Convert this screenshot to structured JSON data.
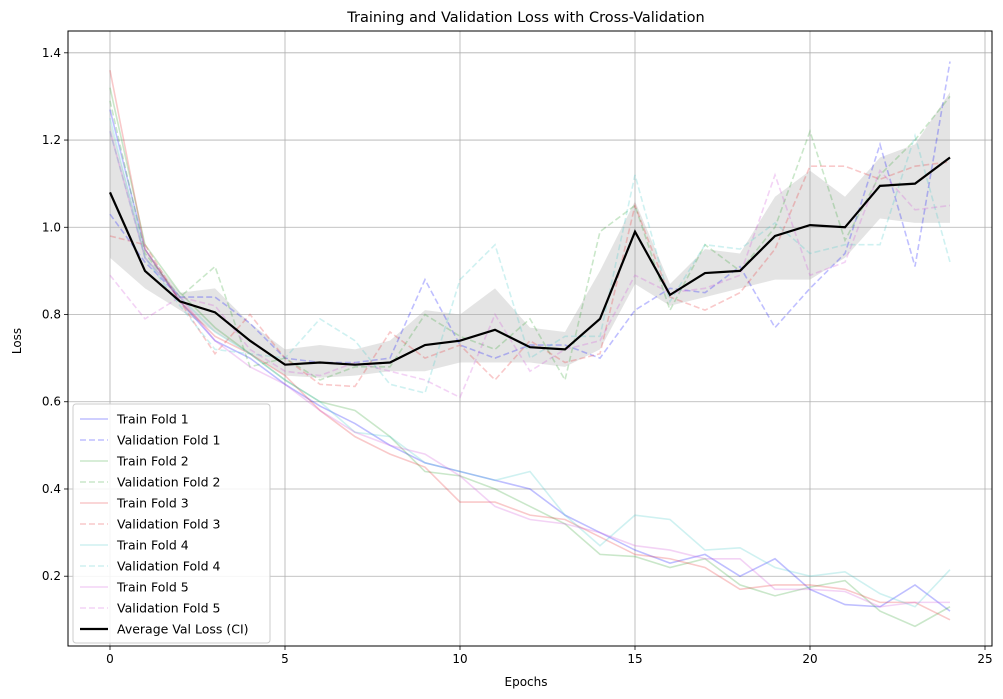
{
  "chart_data": {
    "type": "line",
    "title": "Training and Validation Loss with Cross-Validation",
    "xlabel": "Epochs",
    "ylabel": "Loss",
    "xlim": [
      -1.2,
      25.2
    ],
    "ylim": [
      0.04,
      1.45
    ],
    "xticks": [
      0,
      5,
      10,
      15,
      20,
      25
    ],
    "yticks": [
      0.2,
      0.4,
      0.6,
      0.8,
      1.0,
      1.2,
      1.4
    ],
    "grid": true,
    "legend_position": "lower-left",
    "x": [
      0,
      1,
      2,
      3,
      4,
      5,
      6,
      7,
      8,
      9,
      10,
      11,
      12,
      13,
      14,
      15,
      16,
      17,
      18,
      19,
      20,
      21,
      22,
      23,
      24
    ],
    "series": [
      {
        "name": "Train Fold 1",
        "color": "#0000ff",
        "dash": false,
        "values": [
          1.27,
          0.95,
          0.83,
          0.74,
          0.7,
          0.64,
          0.59,
          0.55,
          0.5,
          0.46,
          0.44,
          0.42,
          0.4,
          0.34,
          0.3,
          0.26,
          0.23,
          0.25,
          0.2,
          0.24,
          0.17,
          0.135,
          0.13,
          0.18,
          0.12
        ]
      },
      {
        "name": "Validation Fold 1",
        "color": "#0000ff",
        "dash": true,
        "values": [
          1.03,
          0.92,
          0.84,
          0.84,
          0.78,
          0.7,
          0.69,
          0.69,
          0.7,
          0.88,
          0.73,
          0.7,
          0.73,
          0.73,
          0.7,
          0.81,
          0.86,
          0.85,
          0.91,
          0.77,
          0.86,
          0.94,
          1.19,
          0.91,
          1.38
        ]
      },
      {
        "name": "Train Fold 2",
        "color": "#2ca02c",
        "dash": false,
        "values": [
          1.32,
          0.96,
          0.85,
          0.77,
          0.71,
          0.65,
          0.6,
          0.58,
          0.52,
          0.44,
          0.43,
          0.4,
          0.36,
          0.32,
          0.25,
          0.245,
          0.22,
          0.24,
          0.18,
          0.155,
          0.175,
          0.19,
          0.12,
          0.085,
          0.13
        ]
      },
      {
        "name": "Validation Fold 2",
        "color": "#2ca02c",
        "dash": true,
        "values": [
          1.29,
          0.94,
          0.84,
          0.91,
          0.68,
          0.7,
          0.65,
          0.68,
          0.68,
          0.8,
          0.75,
          0.72,
          0.79,
          0.65,
          0.99,
          1.05,
          0.81,
          0.96,
          0.9,
          1.0,
          1.22,
          0.97,
          1.12,
          1.2,
          1.3
        ]
      },
      {
        "name": "Train Fold 3",
        "color": "#e8262a",
        "dash": false,
        "values": [
          1.36,
          0.95,
          0.83,
          0.75,
          0.71,
          0.66,
          0.58,
          0.52,
          0.48,
          0.45,
          0.37,
          0.37,
          0.34,
          0.33,
          0.29,
          0.25,
          0.24,
          0.22,
          0.17,
          0.18,
          0.18,
          0.17,
          0.14,
          0.14,
          0.1
        ]
      },
      {
        "name": "Validation Fold 3",
        "color": "#e8262a",
        "dash": true,
        "values": [
          0.98,
          0.96,
          0.83,
          0.71,
          0.8,
          0.7,
          0.64,
          0.635,
          0.76,
          0.7,
          0.73,
          0.65,
          0.74,
          0.69,
          0.71,
          1.05,
          0.84,
          0.81,
          0.85,
          0.95,
          1.14,
          1.14,
          1.11,
          1.14,
          1.15
        ]
      },
      {
        "name": "Train Fold 4",
        "color": "#40c8c8",
        "dash": false,
        "values": [
          1.25,
          0.93,
          0.84,
          0.76,
          0.71,
          0.65,
          0.6,
          0.53,
          0.52,
          0.46,
          0.44,
          0.42,
          0.44,
          0.34,
          0.27,
          0.34,
          0.33,
          0.26,
          0.265,
          0.22,
          0.2,
          0.21,
          0.16,
          0.13,
          0.215
        ]
      },
      {
        "name": "Validation Fold 4",
        "color": "#40c8c8",
        "dash": true,
        "values": [
          1.22,
          0.93,
          0.82,
          0.72,
          0.71,
          0.7,
          0.79,
          0.74,
          0.64,
          0.62,
          0.88,
          0.96,
          0.7,
          0.75,
          0.75,
          1.12,
          0.83,
          0.96,
          0.95,
          1.01,
          0.94,
          0.96,
          0.96,
          1.21,
          0.92
        ]
      },
      {
        "name": "Train Fold 5",
        "color": "#d050d8",
        "dash": false,
        "values": [
          1.22,
          0.93,
          0.84,
          0.74,
          0.68,
          0.64,
          0.58,
          0.53,
          0.5,
          0.48,
          0.43,
          0.36,
          0.33,
          0.32,
          0.3,
          0.27,
          0.26,
          0.24,
          0.24,
          0.17,
          0.17,
          0.165,
          0.13,
          0.14,
          0.14
        ]
      },
      {
        "name": "Validation Fold 5",
        "color": "#d050d8",
        "dash": true,
        "values": [
          0.89,
          0.79,
          0.84,
          0.82,
          0.72,
          0.67,
          0.66,
          0.69,
          0.67,
          0.65,
          0.61,
          0.8,
          0.67,
          0.72,
          0.74,
          0.89,
          0.85,
          0.86,
          0.89,
          1.12,
          0.89,
          0.92,
          1.13,
          1.04,
          1.05
        ]
      }
    ],
    "average": {
      "name": "Average Val Loss (CI)",
      "color": "#000000",
      "values": [
        1.08,
        0.9,
        0.83,
        0.805,
        0.74,
        0.685,
        0.69,
        0.685,
        0.69,
        0.73,
        0.74,
        0.765,
        0.725,
        0.72,
        0.79,
        0.99,
        0.845,
        0.895,
        0.9,
        0.98,
        1.005,
        1.0,
        1.095,
        1.1,
        1.16
      ],
      "ci_lower": [
        0.93,
        0.86,
        0.81,
        0.76,
        0.71,
        0.66,
        0.655,
        0.66,
        0.67,
        0.67,
        0.69,
        0.69,
        0.69,
        0.68,
        0.72,
        0.87,
        0.82,
        0.84,
        0.86,
        0.88,
        0.88,
        0.93,
        1.02,
        1.01,
        1.01
      ],
      "ci_upper": [
        1.24,
        0.95,
        0.85,
        0.86,
        0.78,
        0.72,
        0.73,
        0.72,
        0.74,
        0.81,
        0.8,
        0.86,
        0.77,
        0.76,
        0.9,
        1.06,
        0.87,
        0.95,
        0.94,
        1.07,
        1.13,
        1.07,
        1.16,
        1.19,
        1.31
      ],
      "ci_color": "#aaaaaa"
    }
  }
}
